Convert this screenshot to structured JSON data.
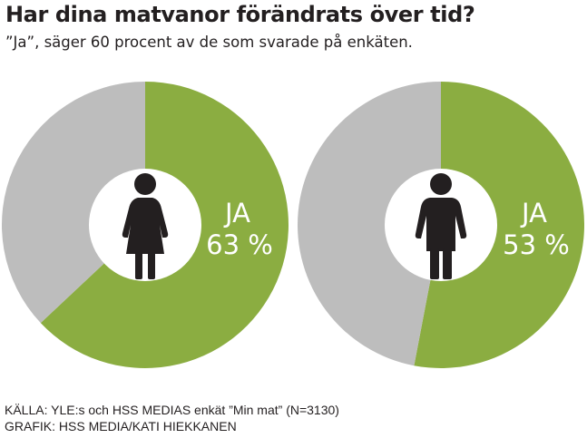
{
  "header": {
    "title": "Har dina matvanor förändrats över tid?",
    "subtitle": "”Ja”, säger 60 procent av de som svarade på enkäten."
  },
  "footer": {
    "source": "KÄLLA: YLE:s och HSS MEDIAS enkät ”Min mat” (N=3130)",
    "credit": "GRAFIK: HSS MEDIA/KATI HIEKKANEN"
  },
  "icons": [
    "woman-icon",
    "man-icon"
  ],
  "colors": {
    "yes": "#8bad41",
    "rest": "#bdbdbd",
    "center": "#ffffff",
    "figure": "#231f20"
  },
  "chart_data": [
    {
      "type": "pie",
      "title": "",
      "slices": [
        {
          "label": "JA",
          "value": 63,
          "display": "63 %",
          "color": "#8bad41"
        },
        {
          "label": "",
          "value": 37,
          "color": "#bdbdbd"
        }
      ]
    },
    {
      "type": "pie",
      "title": "",
      "slices": [
        {
          "label": "JA",
          "value": 53,
          "display": "53 %",
          "color": "#8bad41"
        },
        {
          "label": "",
          "value": 47,
          "color": "#bdbdbd"
        }
      ]
    }
  ]
}
